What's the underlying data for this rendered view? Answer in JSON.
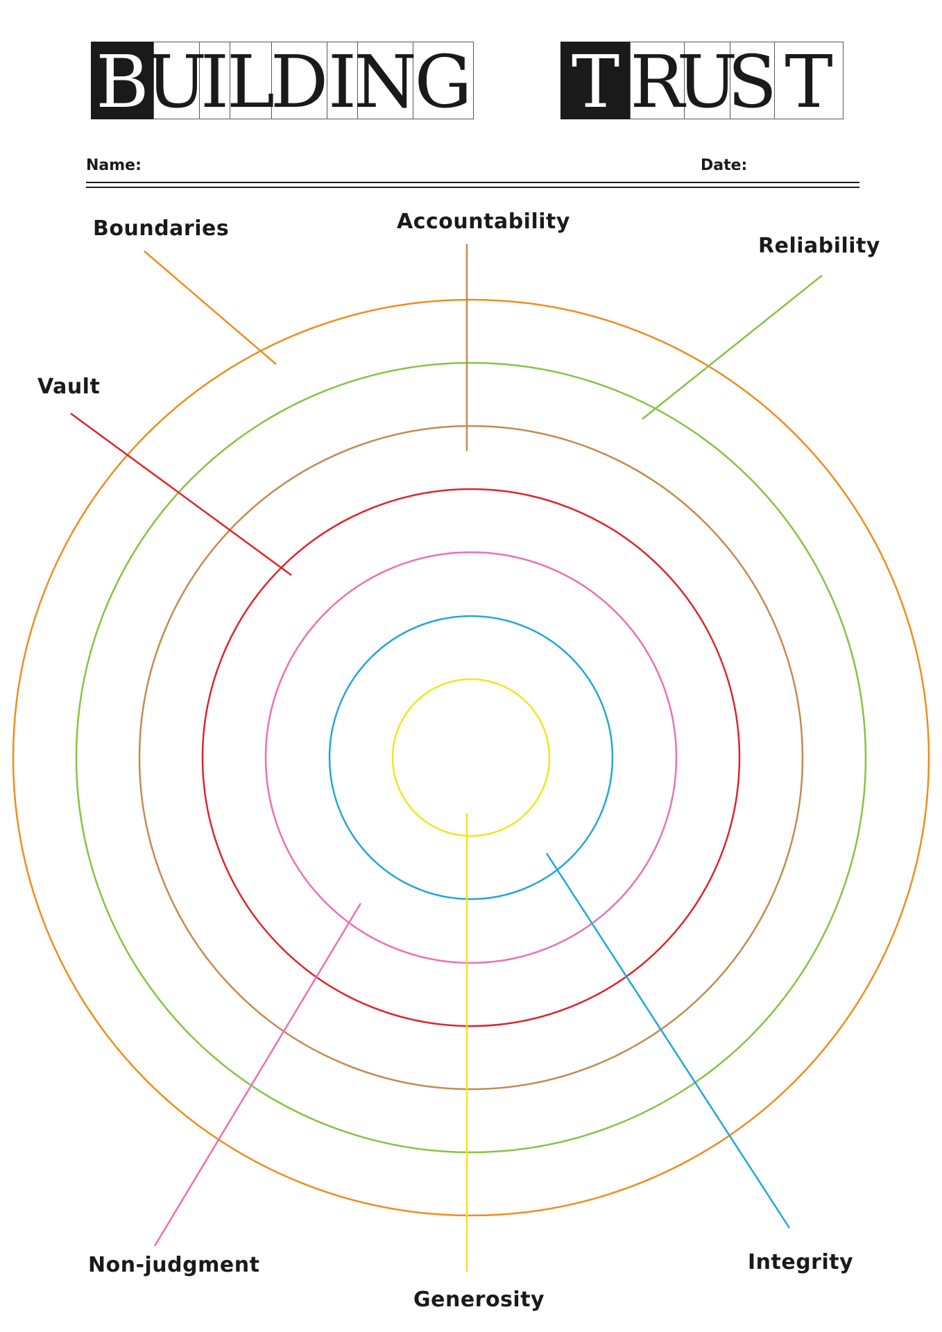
{
  "title": {
    "word1": [
      "B",
      "U",
      "I",
      "L",
      "D",
      "I",
      "N",
      "G"
    ],
    "word2": [
      "T",
      "R",
      "U",
      "S",
      "T"
    ]
  },
  "form": {
    "name_label": "Name:",
    "date_label": "Date:"
  },
  "labels": {
    "boundaries": "Boundaries",
    "accountability": "Accountability",
    "reliability": "Reliability",
    "vault": "Vault",
    "non_judgment": "Non-judgment",
    "generosity": "Generosity",
    "integrity": "Integrity"
  },
  "colors": {
    "boundaries": "#f28b1c",
    "reliability": "#84c440",
    "accountability": "#c48a4f",
    "vault": "#e0232a",
    "non_judgment": "#f06eb2",
    "integrity": "#1fa6dc",
    "generosity": "#f5e41c",
    "ink": "#1a1a1a"
  }
}
